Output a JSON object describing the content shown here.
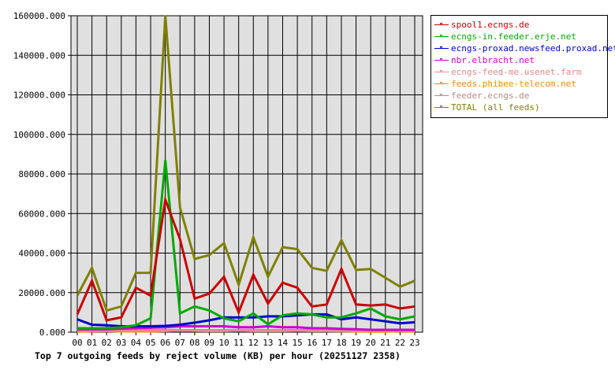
{
  "chart_data": {
    "type": "line",
    "title": "Top 7 outgoing feeds by reject volume (KB) per hour (20251127 2358)",
    "xlabel": "",
    "ylabel": "",
    "ylim": [
      0,
      160000
    ],
    "grid": true,
    "legend_position": "right",
    "x": [
      "00",
      "01",
      "02",
      "03",
      "04",
      "05",
      "06",
      "07",
      "08",
      "09",
      "10",
      "11",
      "12",
      "13",
      "14",
      "15",
      "16",
      "17",
      "18",
      "19",
      "20",
      "21",
      "22",
      "23"
    ],
    "yticks": [
      "0.000",
      "20000.000",
      "40000.000",
      "60000.000",
      "80000.000",
      "100000.000",
      "120000.000",
      "140000.000",
      "160000.000"
    ],
    "series": [
      {
        "name": "spool1.ecngs.de",
        "color": "#cc0000",
        "values": [
          9000,
          26000,
          6000,
          7500,
          22500,
          18500,
          67000,
          47000,
          17000,
          19500,
          28000,
          10000,
          29000,
          14500,
          25000,
          22500,
          13000,
          14000,
          32000,
          14000,
          13500,
          14000,
          12000,
          13000
        ]
      },
      {
        "name": "ecngs-in.feeder.erje.net",
        "color": "#00aa00",
        "values": [
          2000,
          2000,
          2000,
          2500,
          3500,
          7000,
          87000,
          9500,
          13000,
          11000,
          7000,
          5500,
          9500,
          4000,
          8500,
          9500,
          9000,
          7500,
          7500,
          9500,
          12000,
          8000,
          6500,
          8000
        ]
      },
      {
        "name": "ecngs-proxad.newsfeed.proxad.net",
        "color": "#0000cc",
        "values": [
          6500,
          3800,
          3500,
          3000,
          3000,
          3000,
          3200,
          3800,
          4800,
          6000,
          7500,
          7500,
          7500,
          8000,
          8000,
          8500,
          9000,
          9000,
          6500,
          7500,
          6500,
          5500,
          4500,
          5000
        ]
      },
      {
        "name": "nbr.elbracht.net",
        "color": "#cc00cc",
        "values": [
          1500,
          1500,
          1500,
          1800,
          2000,
          2300,
          2500,
          3000,
          3000,
          3000,
          3000,
          2500,
          2500,
          3000,
          2500,
          2500,
          2000,
          2000,
          1700,
          1500,
          1200,
          1200,
          1200,
          1200
        ]
      },
      {
        "name": "ecngs-feed-me.usenet.farm",
        "color": "#ee8888",
        "values": [
          800,
          800,
          800,
          800,
          800,
          800,
          800,
          800,
          800,
          800,
          800,
          800,
          800,
          800,
          800,
          800,
          800,
          800,
          800,
          800,
          800,
          800,
          800,
          800
        ]
      },
      {
        "name": "feeds.phibee-telecom.net",
        "color": "#ff8800",
        "values": [
          300,
          500,
          600,
          400,
          400,
          400,
          600,
          1000,
          700,
          600,
          600,
          900,
          600,
          600,
          600,
          800,
          600,
          600,
          500,
          400,
          300,
          300,
          500,
          400
        ]
      },
      {
        "name": "feeder.ecngs.de",
        "color": "#bb8888",
        "values": [
          1000,
          1000,
          1000,
          1000,
          1000,
          1000,
          1000,
          1000,
          1000,
          1000,
          1000,
          1000,
          1000,
          1000,
          1000,
          1000,
          1000,
          1000,
          1000,
          1000,
          1000,
          1000,
          1000,
          1000
        ]
      },
      {
        "name": "TOTAL (all feeds)",
        "color": "#808000",
        "values": [
          18500,
          32500,
          11000,
          13000,
          30000,
          30000,
          160000,
          63000,
          37000,
          39000,
          45000,
          24000,
          48000,
          28000,
          43000,
          42000,
          32500,
          31000,
          46500,
          31500,
          32000,
          27500,
          23000,
          26000
        ]
      }
    ]
  },
  "legend": {
    "items": [
      {
        "label": "spool1.ecngs.de",
        "color": "#cc0000"
      },
      {
        "label": "ecngs-in.feeder.erje.net",
        "color": "#00aa00"
      },
      {
        "label": "ecngs-proxad.newsfeed.proxad.net",
        "color": "#0000cc"
      },
      {
        "label": "nbr.elbracht.net",
        "color": "#cc00cc"
      },
      {
        "label": "ecngs-feed-me.usenet.farm",
        "color": "#ee8888"
      },
      {
        "label": "feeds.phibee-telecom.net",
        "color": "#ff8800"
      },
      {
        "label": "feeder.ecngs.de",
        "color": "#bb8888"
      },
      {
        "label": "TOTAL (all feeds)",
        "color": "#808000"
      }
    ]
  },
  "style": {
    "plot_bg": "#e0e0e0",
    "grid_color": "#000000"
  }
}
